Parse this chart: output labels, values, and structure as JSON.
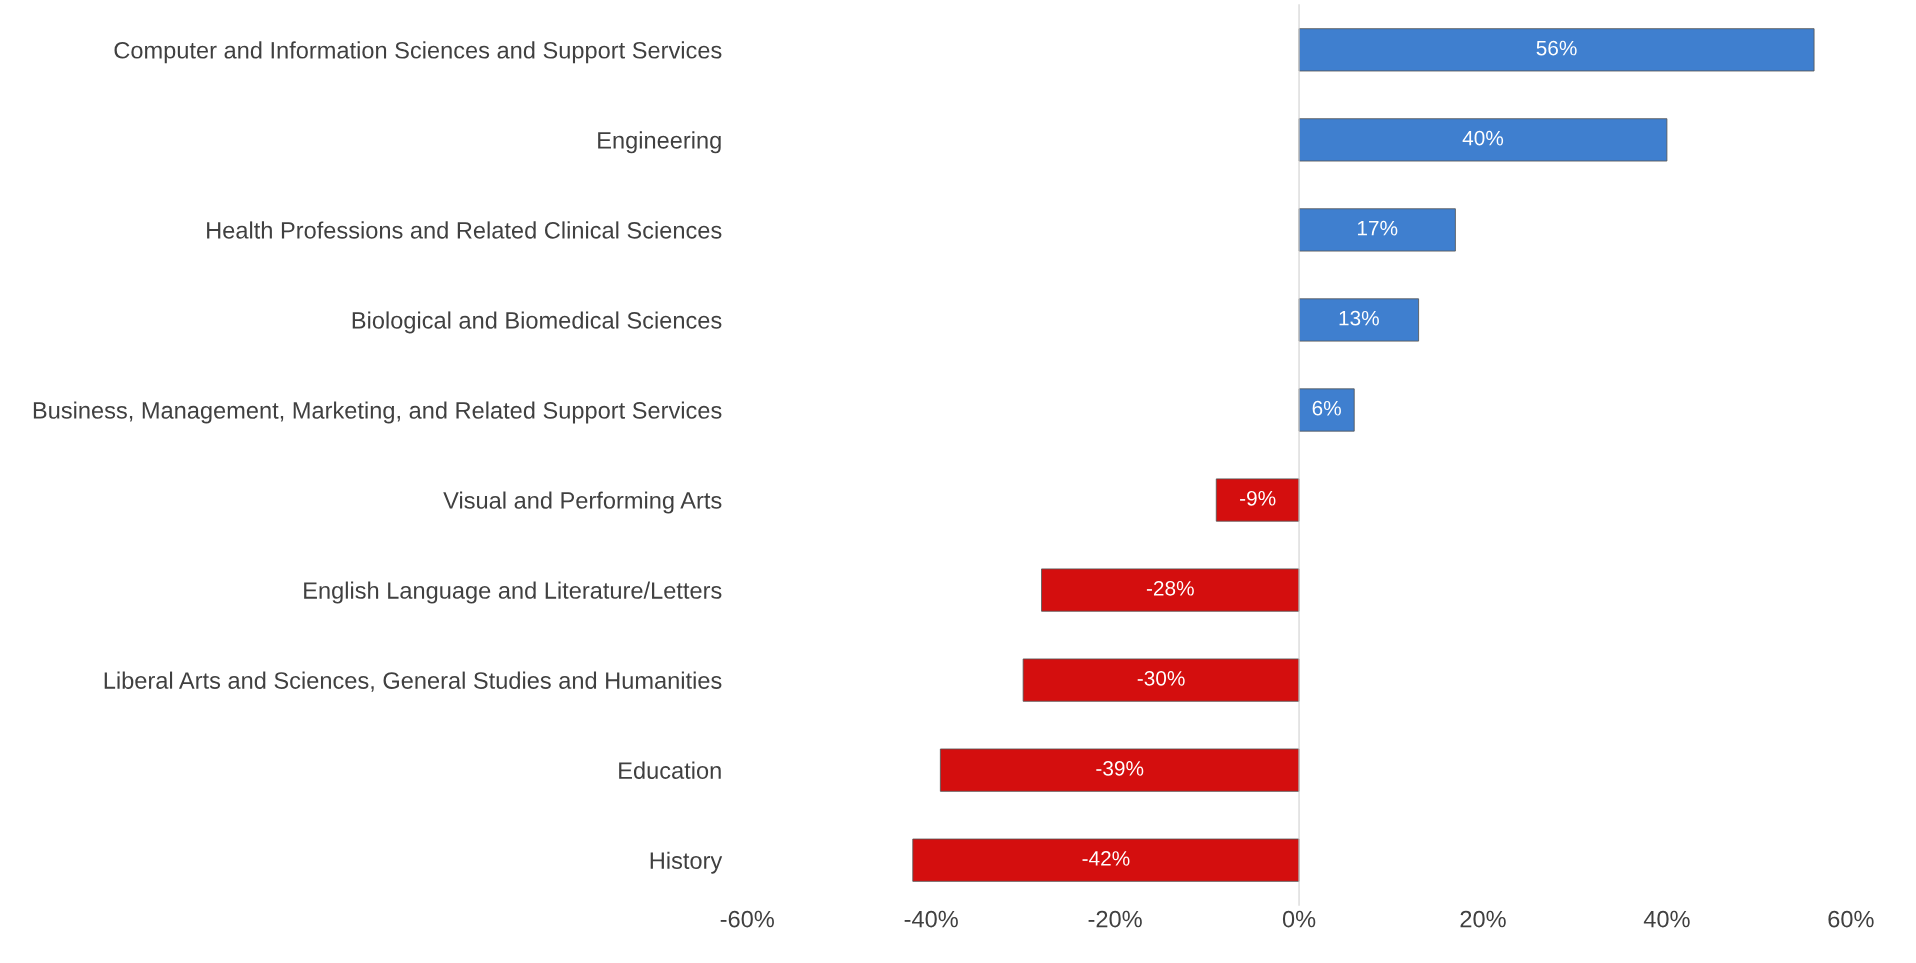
{
  "chart_data": {
    "type": "bar",
    "orientation": "horizontal",
    "categories": [
      "Computer and Information Sciences and Support Services",
      "Engineering",
      "Health Professions and Related Clinical Sciences",
      "Biological and Biomedical Sciences",
      "Business, Management, Marketing, and Related Support Services",
      "Visual and Performing Arts",
      "English Language and Literature/Letters",
      "Liberal Arts and Sciences, General Studies and Humanities",
      "Education",
      "History"
    ],
    "values": [
      56,
      40,
      17,
      13,
      6,
      -9,
      -28,
      -30,
      -39,
      -42
    ],
    "value_labels": [
      "56%",
      "40%",
      "17%",
      "13%",
      "6%",
      "-9%",
      "-28%",
      "-30%",
      "-39%",
      "-42%"
    ],
    "colors": [
      "#3f7fcf",
      "#3f7fcf",
      "#3f7fcf",
      "#3f7fcf",
      "#3f7fcf",
      "#d40e0e",
      "#d40e0e",
      "#d40e0e",
      "#d40e0e",
      "#d40e0e"
    ],
    "xlim": [
      -60,
      60
    ],
    "xticks": [
      {
        "value": -60,
        "label": "-60%"
      },
      {
        "value": -40,
        "label": "-40%"
      },
      {
        "value": -20,
        "label": "-20%"
      },
      {
        "value": 0,
        "label": "0%"
      },
      {
        "value": 20,
        "label": "20%"
      },
      {
        "value": 40,
        "label": "40%"
      },
      {
        "value": 60,
        "label": "60%"
      }
    ]
  }
}
